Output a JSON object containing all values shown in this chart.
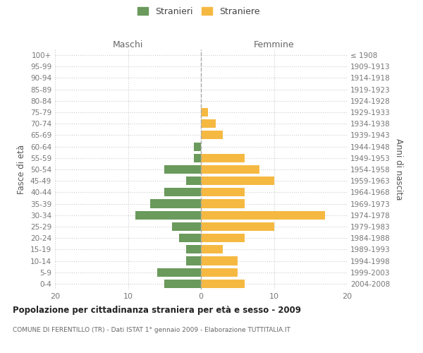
{
  "age_groups": [
    "0-4",
    "5-9",
    "10-14",
    "15-19",
    "20-24",
    "25-29",
    "30-34",
    "35-39",
    "40-44",
    "45-49",
    "50-54",
    "55-59",
    "60-64",
    "65-69",
    "70-74",
    "75-79",
    "80-84",
    "85-89",
    "90-94",
    "95-99",
    "100+"
  ],
  "birth_years": [
    "2004-2008",
    "1999-2003",
    "1994-1998",
    "1989-1993",
    "1984-1988",
    "1979-1983",
    "1974-1978",
    "1969-1973",
    "1964-1968",
    "1959-1963",
    "1954-1958",
    "1949-1953",
    "1944-1948",
    "1939-1943",
    "1934-1938",
    "1929-1933",
    "1924-1928",
    "1919-1923",
    "1914-1918",
    "1909-1913",
    "≤ 1908"
  ],
  "maschi": [
    5,
    6,
    2,
    2,
    3,
    4,
    9,
    7,
    5,
    2,
    5,
    1,
    1,
    0,
    0,
    0,
    0,
    0,
    0,
    0,
    0
  ],
  "femmine": [
    6,
    5,
    5,
    3,
    6,
    10,
    17,
    6,
    6,
    10,
    8,
    6,
    0,
    3,
    2,
    1,
    0,
    0,
    0,
    0,
    0
  ],
  "color_maschi": "#6a9a5c",
  "color_femmine": "#f5b942",
  "title": "Popolazione per cittadinanza straniera per età e sesso - 2009",
  "subtitle": "COMUNE DI FERENTILLO (TR) - Dati ISTAT 1° gennaio 2009 - Elaborazione TUTTITALIA.IT",
  "ylabel_left": "Fasce di età",
  "ylabel_right": "Anni di nascita",
  "label_maschi": "Maschi",
  "label_femmine": "Femmine",
  "legend_maschi": "Stranieri",
  "legend_femmine": "Straniere",
  "xlim": 20,
  "background_color": "#ffffff",
  "grid_color": "#cccccc"
}
